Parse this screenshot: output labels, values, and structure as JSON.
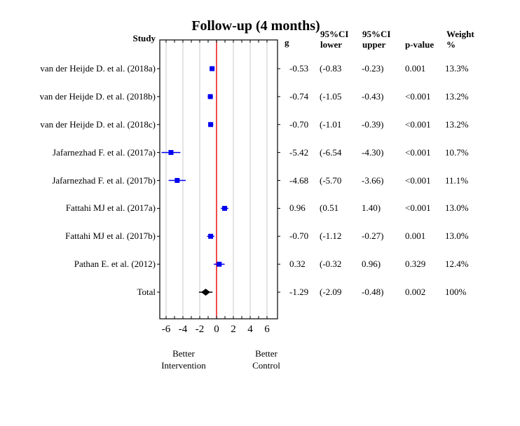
{
  "title": "Follow-up (4 months)",
  "headers": {
    "study": "Study",
    "g": "g",
    "ci_lower": "95%CI\nlower",
    "ci_upper": "95%CI\nupper",
    "p_value": "p-value",
    "weight": "Weight\n%"
  },
  "rows": [
    {
      "study": "van der Heijde D. et al. (2018a)",
      "g": "-0.53",
      "lower": "(-0.83",
      "upper": "-0.23)",
      "p": "0.001",
      "weight": "13.3%"
    },
    {
      "study": "van der Heijde D. et al. (2018b)",
      "g": "-0.74",
      "lower": "(-1.05",
      "upper": "-0.43)",
      "p": "<0.001",
      "weight": "13.2%"
    },
    {
      "study": "van der Heijde D. et al. (2018c)",
      "g": "-0.70",
      "lower": "(-1.01",
      "upper": "-0.39)",
      "p": "<0.001",
      "weight": "13.2%"
    },
    {
      "study": "Jafarnezhad F. et al. (2017a)",
      "g": "-5.42",
      "lower": "(-6.54",
      "upper": "-4.30)",
      "p": "<0.001",
      "weight": "10.7%"
    },
    {
      "study": "Jafarnezhad F. et al. (2017b)",
      "g": "-4.68",
      "lower": "(-5.70",
      "upper": "-3.66)",
      "p": "<0.001",
      "weight": "11.1%"
    },
    {
      "study": "Fattahi MJ et al. (2017a)",
      "g": "0.96",
      "lower": "(0.51",
      "upper": "1.40)",
      "p": "<0.001",
      "weight": "13.0%"
    },
    {
      "study": "Fattahi MJ et al. (2017b)",
      "g": "-0.70",
      "lower": "(-1.12",
      "upper": "-0.27)",
      "p": "0.001",
      "weight": "13.0%"
    },
    {
      "study": "Pathan E. et al. (2012)",
      "g": "0.32",
      "lower": "(-0.32",
      "upper": "0.96)",
      "p": "0.329",
      "weight": "12.4%"
    },
    {
      "study": "Total",
      "g": "-1.29",
      "lower": "(-2.09",
      "upper": "-0.48)",
      "p": "0.002",
      "weight": "100%"
    }
  ],
  "axis": {
    "tick_labels": [
      "-6",
      "-4",
      "-2",
      "0",
      "2",
      "4",
      "6"
    ],
    "note_left": "Better\nIntervention",
    "note_right": "Better\nControl"
  },
  "colors": {
    "marker": "#0000ee",
    "total_marker": "#000000",
    "reference_line": "#ee0000",
    "gridline": "#c9c9c9",
    "frame": "#000000",
    "background": "#ffffff"
  },
  "chart_data": {
    "type": "forest",
    "title": "Follow-up (4 months)",
    "effect_measure": "g",
    "xlim": [
      -6.75,
      7.25
    ],
    "x_ticks": [
      -6,
      -4,
      -2,
      0,
      2,
      4,
      6
    ],
    "minor_tick_step": 1,
    "reference_line_x": 0,
    "grid": true,
    "note_left": "Better Intervention",
    "note_right": "Better Control",
    "studies": [
      {
        "name": "van der Heijde D. et al. (2018a)",
        "g": -0.53,
        "ci": [
          -0.83,
          -0.23
        ],
        "p": "0.001",
        "weight_pct": 13.3,
        "total": false
      },
      {
        "name": "van der Heijde D. et al. (2018b)",
        "g": -0.74,
        "ci": [
          -1.05,
          -0.43
        ],
        "p": "<0.001",
        "weight_pct": 13.2,
        "total": false
      },
      {
        "name": "van der Heijde D. et al. (2018c)",
        "g": -0.7,
        "ci": [
          -1.01,
          -0.39
        ],
        "p": "<0.001",
        "weight_pct": 13.2,
        "total": false
      },
      {
        "name": "Jafarnezhad F. et al. (2017a)",
        "g": -5.42,
        "ci": [
          -6.54,
          -4.3
        ],
        "p": "<0.001",
        "weight_pct": 10.7,
        "total": false
      },
      {
        "name": "Jafarnezhad F. et al. (2017b)",
        "g": -4.68,
        "ci": [
          -5.7,
          -3.66
        ],
        "p": "<0.001",
        "weight_pct": 11.1,
        "total": false
      },
      {
        "name": "Fattahi MJ et al. (2017a)",
        "g": 0.96,
        "ci": [
          0.51,
          1.4
        ],
        "p": "<0.001",
        "weight_pct": 13.0,
        "total": false
      },
      {
        "name": "Fattahi MJ et al. (2017b)",
        "g": -0.7,
        "ci": [
          -1.12,
          -0.27
        ],
        "p": "0.001",
        "weight_pct": 13.0,
        "total": false
      },
      {
        "name": "Pathan E. et al. (2012)",
        "g": 0.32,
        "ci": [
          -0.32,
          0.96
        ],
        "p": "0.329",
        "weight_pct": 12.4,
        "total": false
      },
      {
        "name": "Total",
        "g": -1.29,
        "ci": [
          -2.09,
          -0.48
        ],
        "p": "0.002",
        "weight_pct": 100,
        "total": true
      }
    ]
  }
}
